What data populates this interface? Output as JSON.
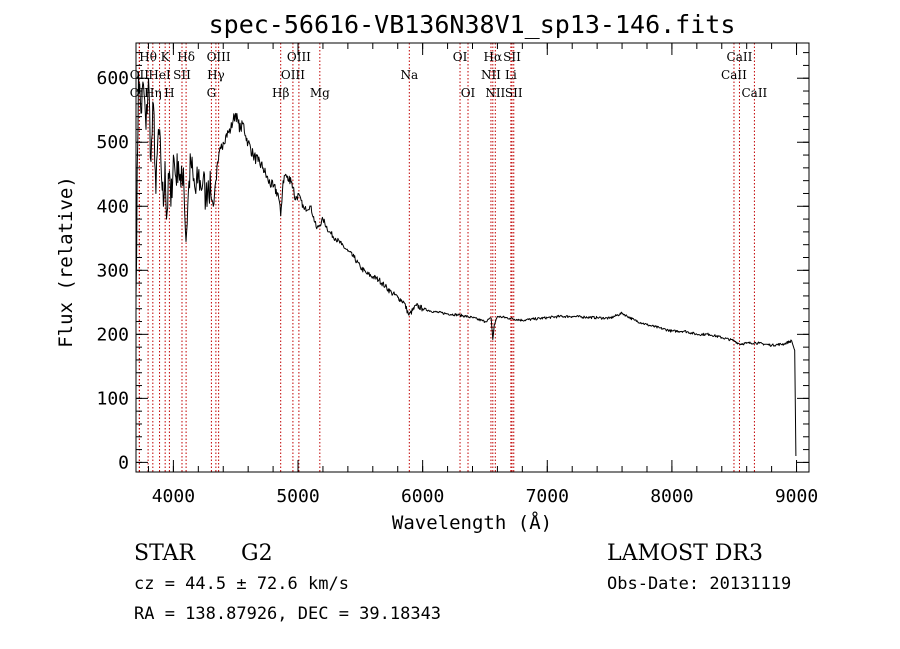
{
  "chart_data": {
    "type": "line",
    "title": "spec-56616-VB136N38V1_sp13-146.fits",
    "xlabel": "Wavelength (Å)",
    "ylabel": "Flux (relative)",
    "xlim": [
      3700,
      9100
    ],
    "ylim": [
      -15,
      655
    ],
    "xticks": [
      4000,
      5000,
      6000,
      7000,
      8000,
      9000
    ],
    "yticks": [
      0,
      100,
      200,
      300,
      400,
      500,
      600
    ],
    "xtick_labels": [
      "4000",
      "5000",
      "6000",
      "7000",
      "8000",
      "9000"
    ],
    "ytick_labels": [
      "0",
      "100",
      "200",
      "300",
      "400",
      "500",
      "600"
    ],
    "x_minor_step": 200,
    "y_minor_step": 20,
    "spectrum": {
      "x": [
        3700,
        3720,
        3740,
        3760,
        3780,
        3800,
        3820,
        3840,
        3860,
        3880,
        3900,
        3920,
        3933,
        3945,
        3968,
        3980,
        4000,
        4020,
        4040,
        4060,
        4080,
        4101,
        4120,
        4140,
        4160,
        4180,
        4200,
        4220,
        4240,
        4260,
        4280,
        4300,
        4310,
        4320,
        4340,
        4360,
        4380,
        4400,
        4420,
        4440,
        4460,
        4480,
        4500,
        4520,
        4540,
        4560,
        4580,
        4600,
        4640,
        4680,
        4720,
        4760,
        4800,
        4840,
        4861,
        4880,
        4900,
        4920,
        4940,
        4960,
        4980,
        5000,
        5050,
        5100,
        5150,
        5172,
        5200,
        5250,
        5300,
        5350,
        5400,
        5450,
        5500,
        5550,
        5600,
        5650,
        5700,
        5750,
        5800,
        5850,
        5890,
        5950,
        6000,
        6100,
        6200,
        6300,
        6400,
        6500,
        6550,
        6563,
        6575,
        6600,
        6700,
        6800,
        6900,
        7000,
        7100,
        7200,
        7300,
        7400,
        7500,
        7600,
        7700,
        7800,
        7900,
        8000,
        8100,
        8200,
        8300,
        8400,
        8500,
        8542,
        8600,
        8662,
        8700,
        8800,
        8900,
        8960,
        8985,
        8995
      ],
      "y": [
        260,
        610,
        545,
        590,
        520,
        600,
        470,
        560,
        420,
        520,
        470,
        400,
        470,
        380,
        455,
        400,
        480,
        445,
        470,
        430,
        460,
        345,
        420,
        470,
        440,
        420,
        450,
        430,
        445,
        410,
        440,
        420,
        410,
        400,
        440,
        470,
        490,
        500,
        510,
        515,
        520,
        535,
        545,
        530,
        520,
        530,
        510,
        500,
        480,
        470,
        460,
        440,
        430,
        420,
        385,
        440,
        450,
        440,
        445,
        430,
        410,
        420,
        395,
        400,
        365,
        370,
        380,
        360,
        350,
        340,
        330,
        320,
        305,
        295,
        290,
        285,
        275,
        265,
        258,
        250,
        230,
        245,
        240,
        235,
        232,
        230,
        226,
        220,
        225,
        192,
        215,
        228,
        225,
        222,
        224,
        226,
        228,
        228,
        227,
        226,
        225,
        233,
        222,
        215,
        210,
        205,
        205,
        200,
        200,
        195,
        190,
        185,
        186,
        187,
        186,
        183,
        185,
        190,
        175,
        10
      ]
    },
    "lines": [
      {
        "label": "Hθ",
        "x": 3797,
        "row": 0
      },
      {
        "label": "OII",
        "x": 3727,
        "row": 1
      },
      {
        "label": "OII",
        "x": 3727,
        "row": 2
      },
      {
        "label": "Hη",
        "x": 3835,
        "row": 2
      },
      {
        "label": "HeI",
        "x": 3889,
        "row": 1
      },
      {
        "label": "K",
        "x": 3934,
        "row": 0
      },
      {
        "label": "H",
        "x": 3968,
        "row": 2
      },
      {
        "label": "SII",
        "x": 4069,
        "row": 1
      },
      {
        "label": "Hδ",
        "x": 4102,
        "row": 0
      },
      {
        "label": "OIII",
        "x": 4363,
        "row": 0
      },
      {
        "label": "Hγ",
        "x": 4341,
        "row": 1
      },
      {
        "label": "G",
        "x": 4305,
        "row": 2
      },
      {
        "label": "Hβ",
        "x": 4861,
        "row": 2
      },
      {
        "label": "OIII",
        "x": 5007,
        "row": 0
      },
      {
        "label": "OIII",
        "x": 4959,
        "row": 1
      },
      {
        "label": "Mg",
        "x": 5175,
        "row": 2
      },
      {
        "label": "Na",
        "x": 5893,
        "row": 1
      },
      {
        "label": "OI",
        "x": 6300,
        "row": 0
      },
      {
        "label": "OI",
        "x": 6364,
        "row": 2
      },
      {
        "label": "Hα",
        "x": 6563,
        "row": 0
      },
      {
        "label": "NII",
        "x": 6548,
        "row": 1
      },
      {
        "label": "NII",
        "x": 6583,
        "row": 2
      },
      {
        "label": "SII",
        "x": 6717,
        "row": 0
      },
      {
        "label": "Li",
        "x": 6708,
        "row": 1
      },
      {
        "label": "SII",
        "x": 6731,
        "row": 2
      },
      {
        "label": "CaII",
        "x": 8542,
        "row": 0
      },
      {
        "label": "CaII",
        "x": 8498,
        "row": 1
      },
      {
        "label": "CaII",
        "x": 8662,
        "row": 2
      }
    ]
  },
  "info": {
    "object_class": "STAR",
    "subclass": "G2",
    "survey": "LAMOST DR3",
    "cz": "cz = 44.5 ± 72.6 km/s",
    "obs_date": "Obs-Date: 20131119",
    "radec": "RA = 138.87926, DEC =  39.18343"
  }
}
